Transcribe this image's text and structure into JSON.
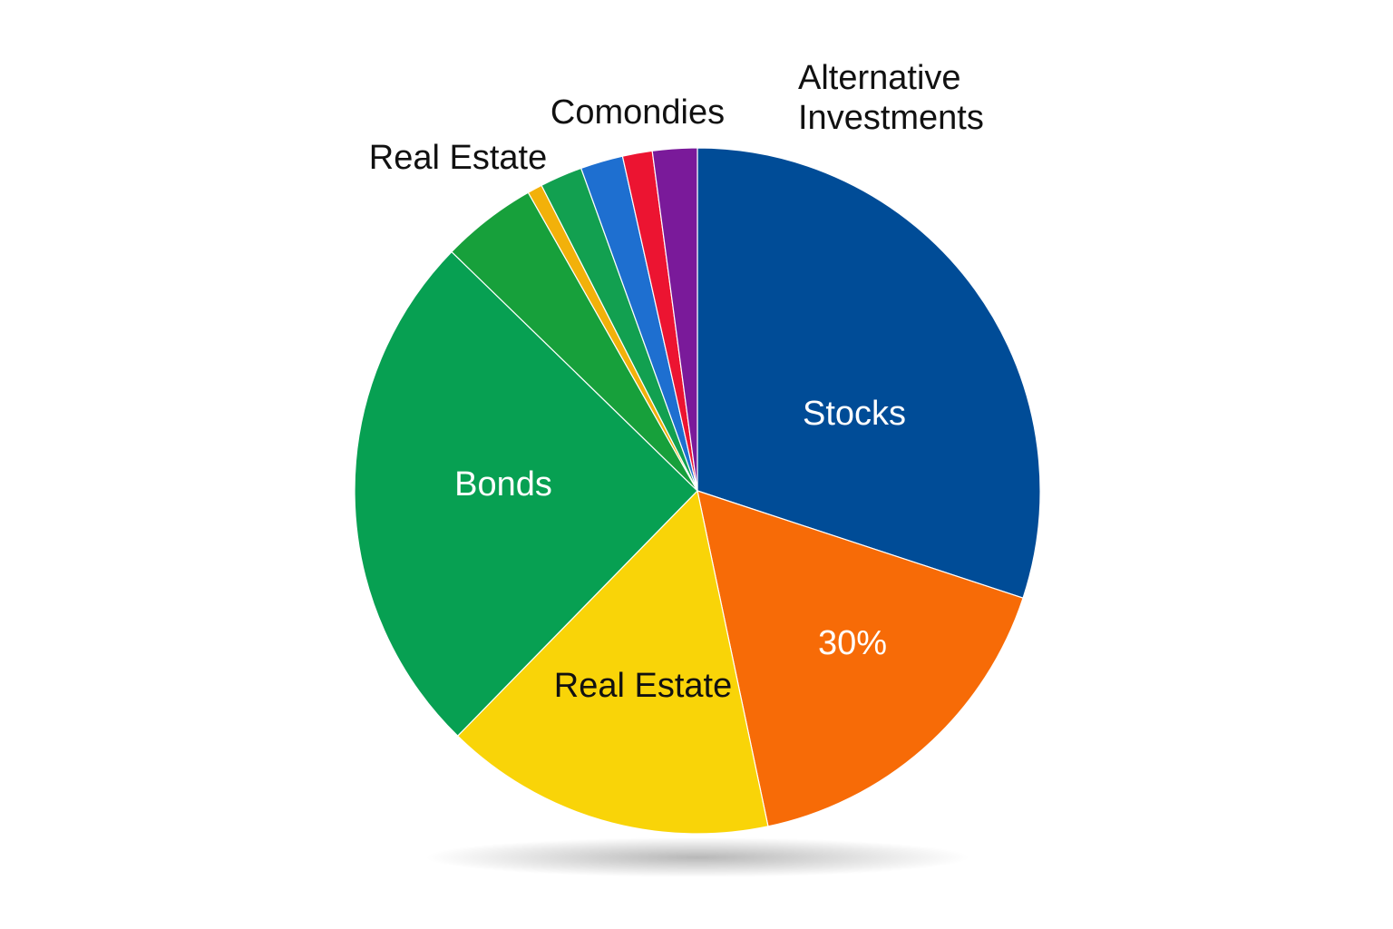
{
  "chart_data": {
    "type": "pie",
    "categories": [
      "Stocks",
      null,
      "Real Estate",
      "Bonds",
      "Real Estate",
      null,
      null,
      "Comondies",
      null,
      "Alternative Investments"
    ],
    "values": [
      30,
      16.6,
      15.6,
      24.9,
      4.5,
      0.7,
      2,
      2,
      1.4,
      2.1
    ],
    "colors": [
      "#004c97",
      "#f76b07",
      "#f9d408",
      "#07a052",
      "#17a03b",
      "#f2b10a",
      "#12a050",
      "#1e6fd0",
      "#ec1431",
      "#7a1a9a"
    ],
    "annotations": [
      "30%"
    ]
  }
}
